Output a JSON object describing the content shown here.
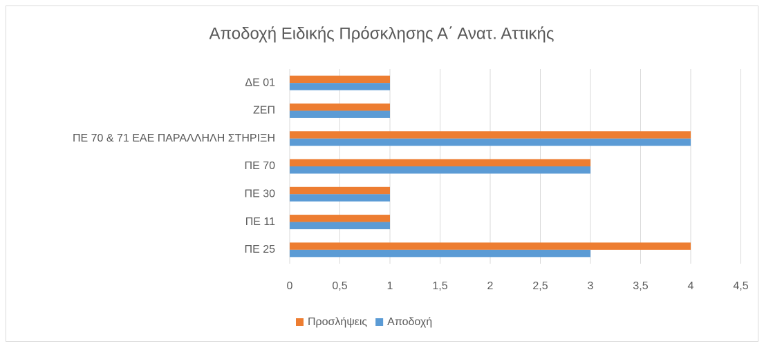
{
  "chart_data": {
    "type": "bar",
    "orientation": "horizontal",
    "title": "Αποδοχή Ειδικής Πρόσκλησης Α΄ Ανατ. Αττικής",
    "categories": [
      "ΔΕ 01",
      "ΖΕΠ",
      "ΠΕ 70 & 71 ΕΑΕ ΠΑΡΑΛΛΗΛΗ ΣΤΗΡΙΞΗ",
      "ΠΕ 70",
      "ΠΕ 30",
      "ΠΕ 11",
      "ΠΕ 25"
    ],
    "series": [
      {
        "name": "Προσλήψεις",
        "color": "#ed7d31",
        "values": [
          1,
          1,
          4,
          3,
          1,
          1,
          4
        ]
      },
      {
        "name": "Αποδοχή",
        "color": "#5b9bd5",
        "values": [
          1,
          1,
          4,
          3,
          1,
          1,
          3
        ]
      }
    ],
    "xlim": [
      0,
      4.5
    ],
    "xticks": [
      0,
      {
        "value": 0.5,
        "label": "0,5"
      },
      1,
      {
        "value": 1.5,
        "label": "1,5"
      },
      2,
      {
        "value": 2.5,
        "label": "2,5"
      },
      3,
      {
        "value": 3.5,
        "label": "3,5"
      },
      4,
      {
        "value": 4.5,
        "label": "4,5"
      }
    ],
    "grid": true,
    "legend": "bottom"
  }
}
